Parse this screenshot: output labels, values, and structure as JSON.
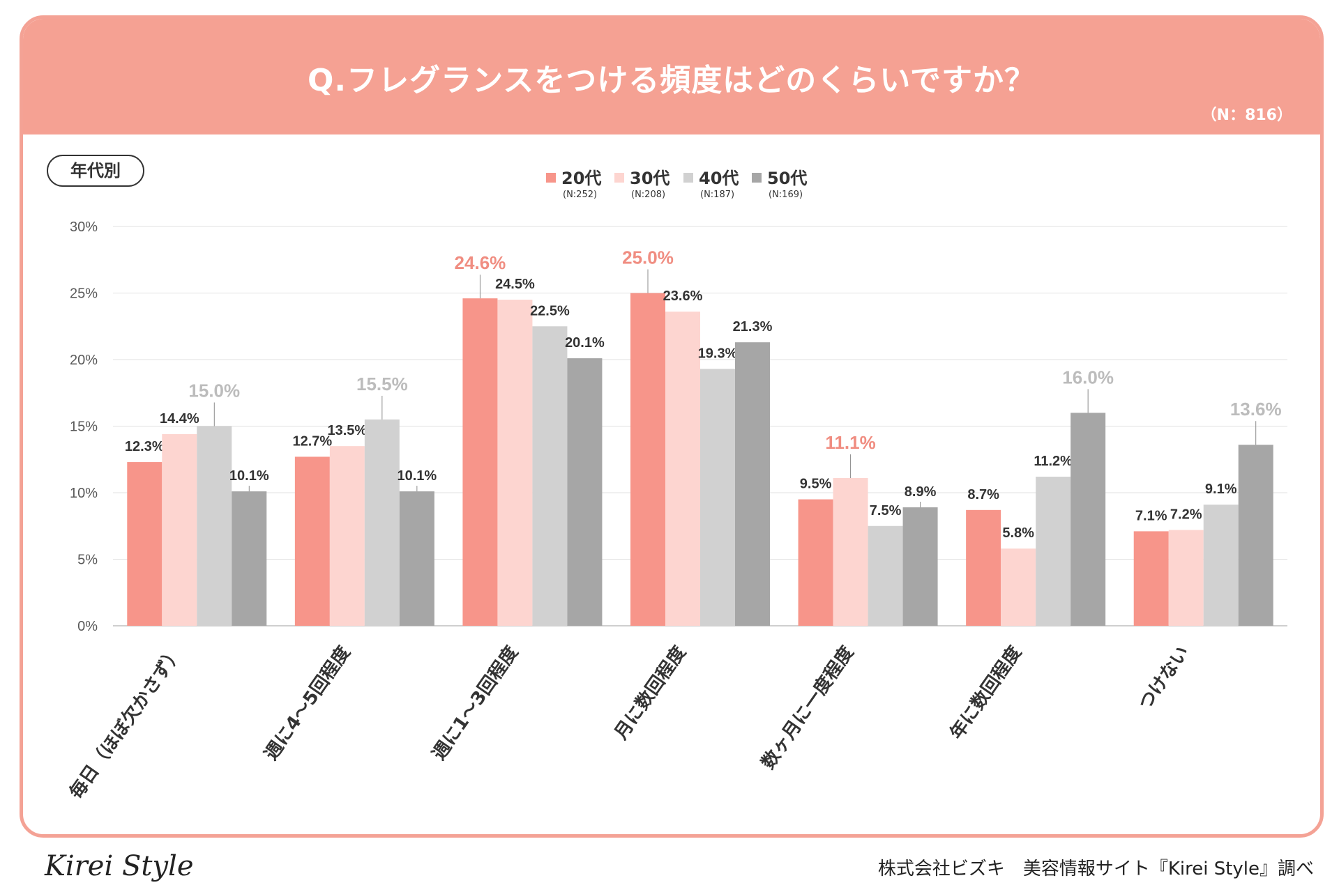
{
  "header": {
    "title": "Q.フレグランスをつける頻度はどのくらいですか？",
    "total_n": "（N：816）"
  },
  "badge": "年代別",
  "footer": {
    "logo": "Kirei Style",
    "credit": "株式会社ビズキ　美容情報サイト『Kirei Style』調べ"
  },
  "colors": {
    "header": "#f5a193",
    "s20": "#f7958a",
    "s30": "#fdd5d0",
    "s40": "#d1d1d1",
    "s50": "#a6a6a6",
    "highlight_pink": "#f08d81",
    "highlight_grey": "#bcbcbc"
  },
  "chart_data": {
    "type": "bar",
    "title": "Q.フレグランスをつける頻度はどのくらいですか？",
    "ylim": [
      0,
      30
    ],
    "yticks": [
      "0%",
      "5%",
      "10%",
      "15%",
      "20%",
      "25%",
      "30%"
    ],
    "ytick_values": [
      0,
      5,
      10,
      15,
      20,
      25,
      30
    ],
    "categories": [
      "毎日（ほぼ欠かさず）",
      "週に4～5回程度",
      "週に1～3回程度",
      "月に数回程度",
      "数ヶ月に一度程度",
      "年に数回程度",
      "つけない"
    ],
    "series": [
      {
        "name": "20代",
        "n": "(N:252)",
        "values": [
          12.3,
          12.7,
          24.6,
          25.0,
          9.5,
          8.7,
          7.1
        ],
        "labels": [
          "12.3%",
          "12.7%",
          "24.6%",
          "25.0%",
          "9.5%",
          "8.7%",
          "7.1%"
        ]
      },
      {
        "name": "30代",
        "n": "(N:208)",
        "values": [
          14.4,
          13.5,
          24.5,
          23.6,
          11.1,
          5.8,
          7.2
        ],
        "labels": [
          "14.4%",
          "13.5%",
          "24.5%",
          "23.6%",
          "11.1%",
          "5.8%",
          "7.2%"
        ]
      },
      {
        "name": "40代",
        "n": "(N:187)",
        "values": [
          15.0,
          15.5,
          22.5,
          19.3,
          7.5,
          11.2,
          9.1
        ],
        "labels": [
          "15.0%",
          "15.5%",
          "22.5%",
          "19.3%",
          "7.5%",
          "11.2%",
          "9.1%"
        ]
      },
      {
        "name": "50代",
        "n": "(N:169)",
        "values": [
          10.1,
          10.1,
          20.1,
          21.3,
          8.9,
          16.0,
          13.6
        ],
        "labels": [
          "10.1%",
          "10.1%",
          "20.1%",
          "21.3%",
          "8.9%",
          "16.0%",
          "13.6%"
        ]
      }
    ],
    "highlights": [
      {
        "category": 0,
        "series": 2
      },
      {
        "category": 1,
        "series": 2
      },
      {
        "category": 2,
        "series": 0
      },
      {
        "category": 3,
        "series": 0
      },
      {
        "category": 4,
        "series": 1
      },
      {
        "category": 5,
        "series": 3
      },
      {
        "category": 6,
        "series": 3
      }
    ],
    "legend_position": "top-center",
    "grid": true
  }
}
